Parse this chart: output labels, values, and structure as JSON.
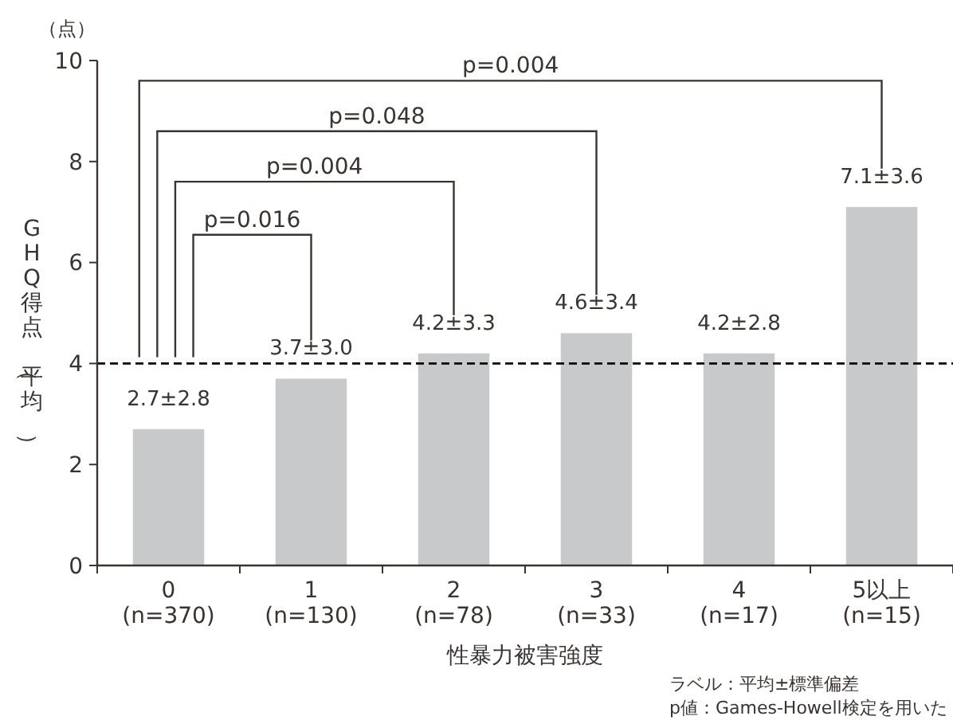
{
  "chart_data": {
    "type": "bar",
    "categories": [
      "0\n(n=370)",
      "1\n(n=130)",
      "2\n(n=78)",
      "3\n(n=33)",
      "4\n(n=17)",
      "5以上\n(n=15)"
    ],
    "values": [
      2.7,
      3.7,
      4.2,
      4.6,
      4.2,
      7.1
    ],
    "value_labels": [
      "2.7±2.8",
      "3.7±3.0",
      "4.2±3.3",
      "4.6±3.4",
      "4.2±2.8",
      "7.1±3.6"
    ],
    "color": "#c8c9cb",
    "xlabel": "性暴力被害強度",
    "ylabel": "GHQ得点（平均）",
    "ylim": [
      0,
      10
    ],
    "yticks": [
      0,
      2,
      4,
      6,
      8,
      10
    ],
    "ref_lines": [
      {
        "axis": "y",
        "value": 4,
        "color": "#000000",
        "line_style": "dashed"
      }
    ],
    "annotations": [
      "p=0.004",
      "p=0.048",
      "p=0.004",
      "p=0.016",
      "（点）",
      "ラベル：平均±標準偏差",
      "p値：Games-Howell検定を用いた"
    ],
    "grid": false
  }
}
